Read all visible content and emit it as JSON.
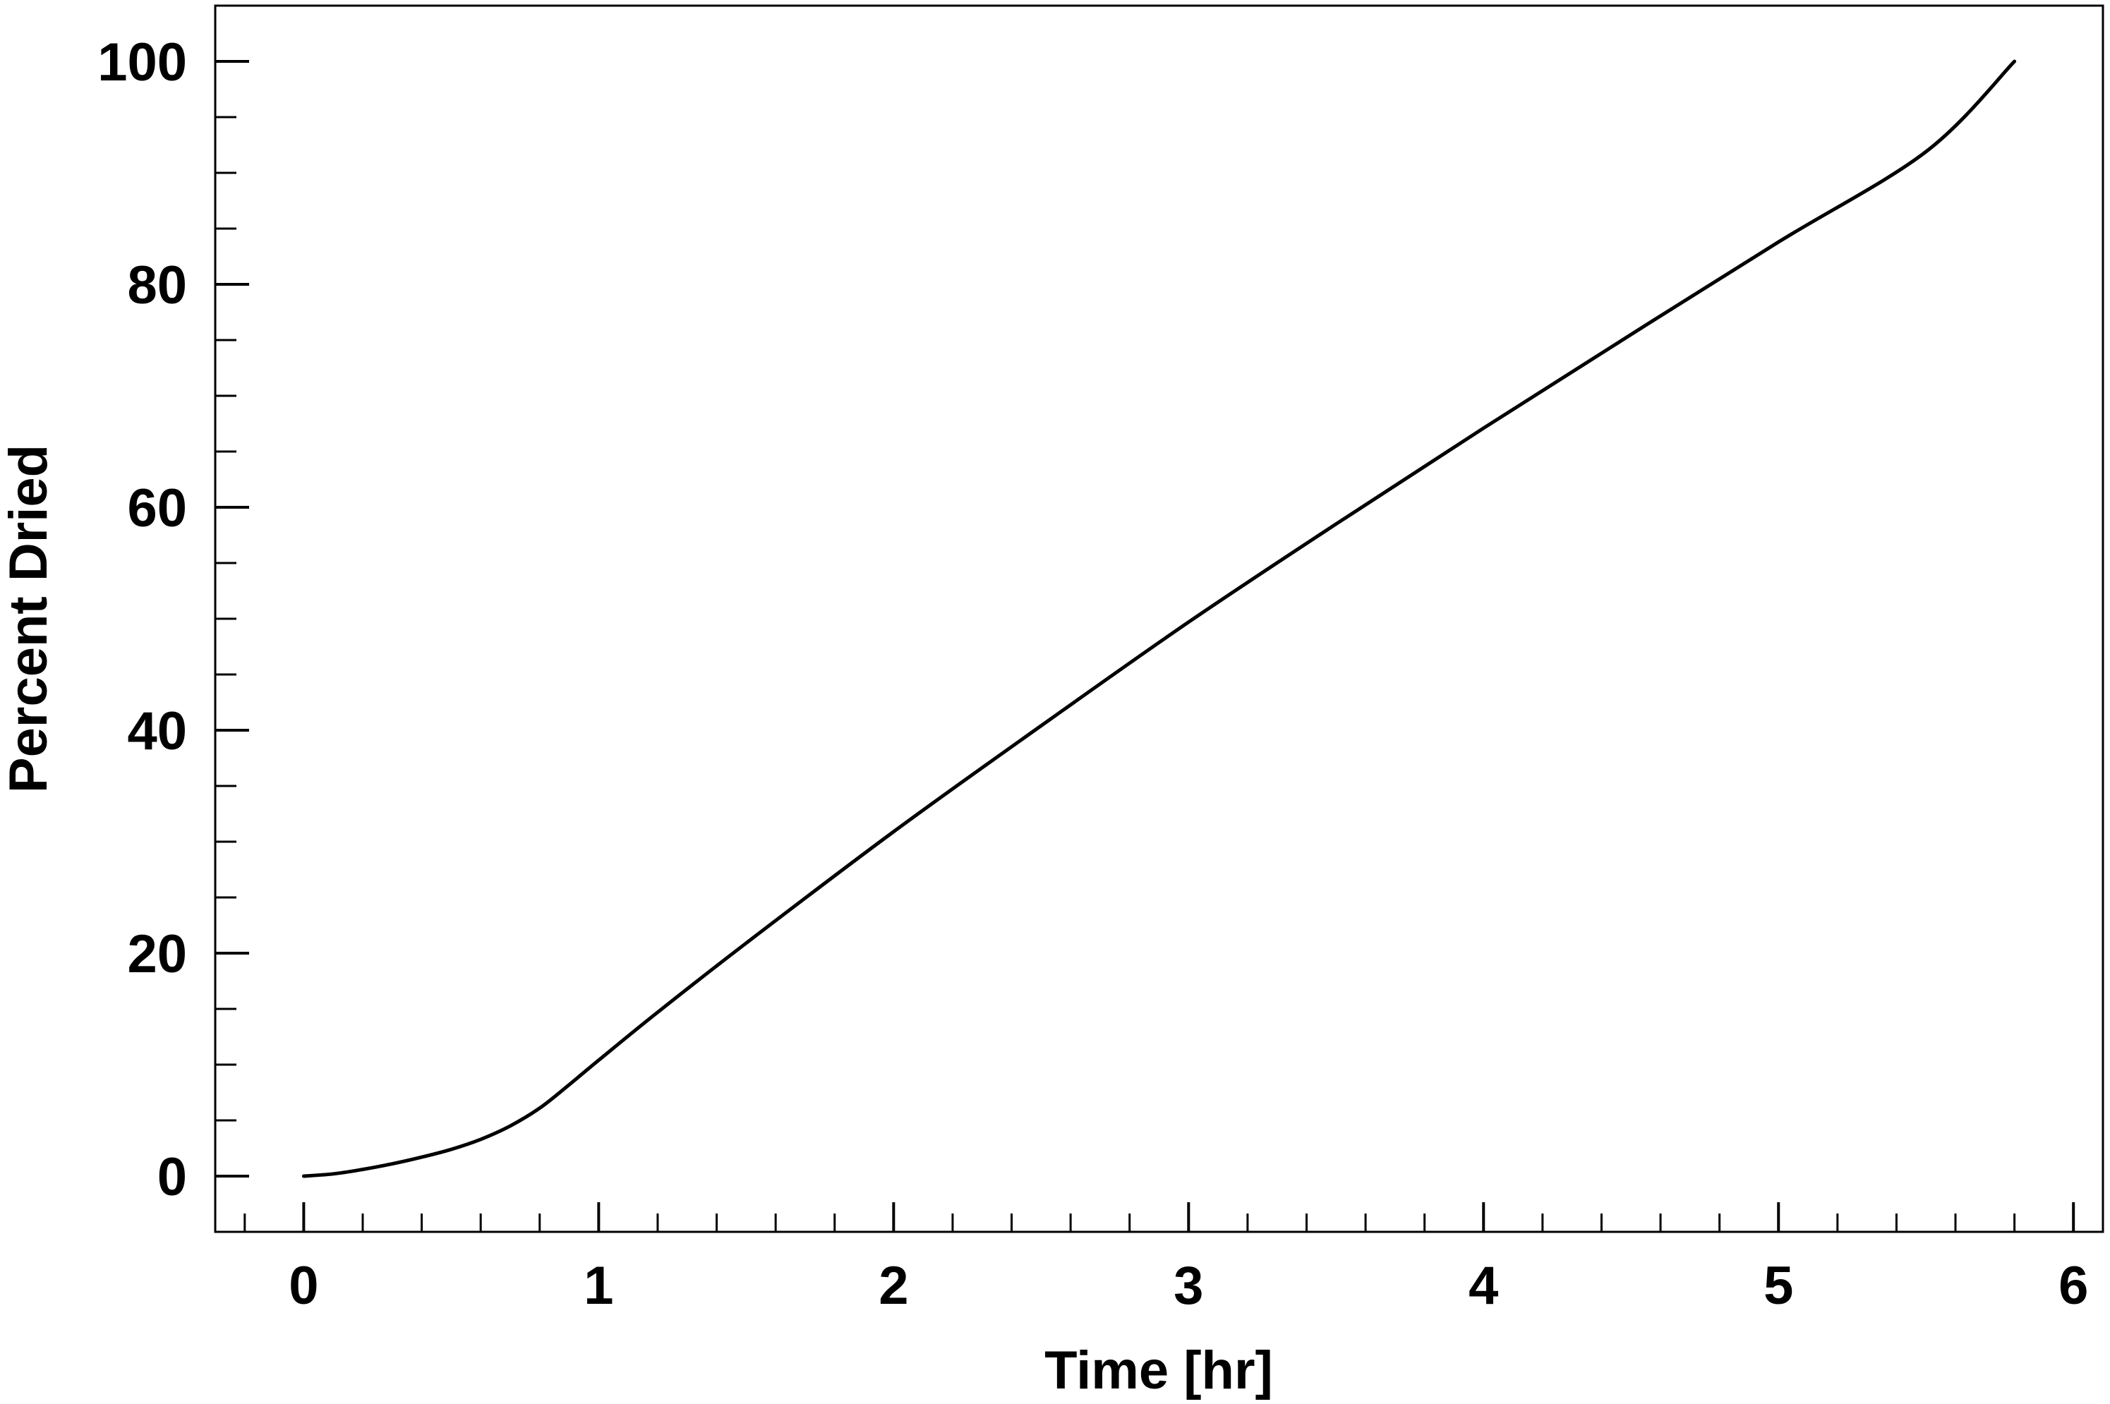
{
  "chart_data": {
    "type": "line",
    "title": "",
    "xlabel": "Time [hr]",
    "ylabel": "Percent Dried",
    "xlim": [
      -0.3,
      6.1
    ],
    "ylim": [
      -5,
      105
    ],
    "xticks": [
      0,
      1,
      2,
      3,
      4,
      5,
      6
    ],
    "xtick_labels": [
      "0",
      "1",
      "2",
      "3",
      "4",
      "5",
      "6"
    ],
    "yticks": [
      0,
      20,
      40,
      60,
      80,
      100
    ],
    "ytick_labels": [
      "0",
      "20",
      "40",
      "60",
      "80",
      "100"
    ],
    "x_minor_step": 0.2,
    "y_minor_step": 5,
    "grid": false,
    "legend": "none",
    "line_color": "#000000",
    "series": [
      {
        "x": [
          0,
          0.1,
          0.2,
          0.3,
          0.4,
          0.5,
          0.6,
          0.7,
          0.8,
          0.9,
          1.0,
          1.2,
          1.5,
          2.0,
          2.5,
          3.0,
          3.5,
          4.0,
          4.5,
          5.0,
          5.5,
          5.8
        ],
        "y": [
          0,
          0.2,
          0.6,
          1.1,
          1.7,
          2.4,
          3.3,
          4.5,
          6.1,
          8.2,
          10.4,
          14.7,
          20.9,
          30.9,
          40.4,
          49.7,
          58.5,
          67.1,
          75.5,
          83.8,
          91.9,
          100
        ]
      }
    ]
  }
}
